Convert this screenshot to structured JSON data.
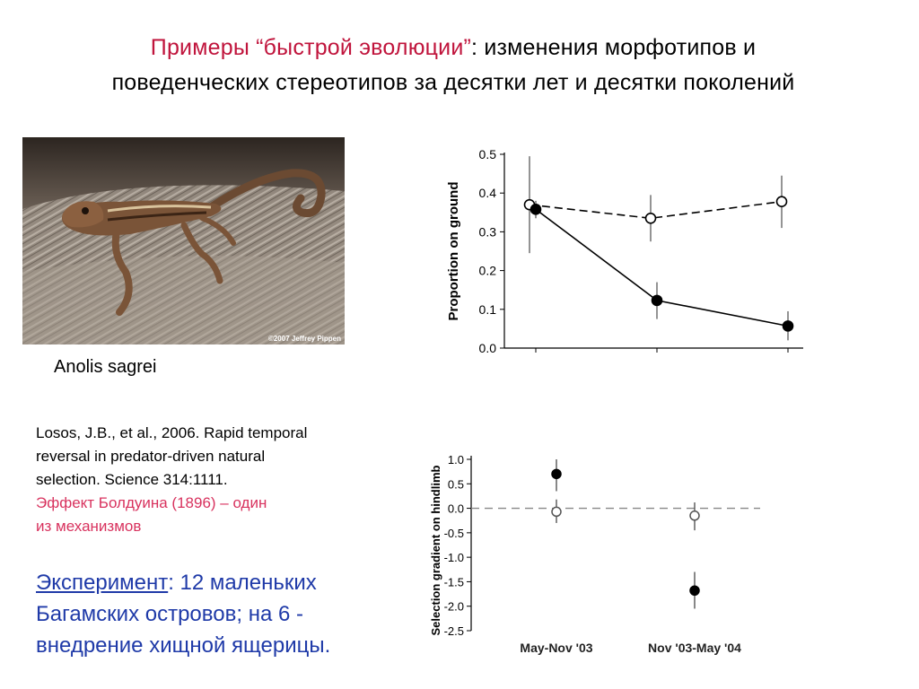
{
  "title": {
    "accent": "Примеры “быстрой эволюции”",
    "rest": ": изменения морфотипов и",
    "line2": "поведенческих стереотипов за десятки лет и десятки поколений"
  },
  "photo": {
    "credit": "©2007 Jeffrey Pippen",
    "caption": "Anolis sagrei"
  },
  "reference": {
    "line1": "Losos, J.B., et al., 2006. Rapid temporal",
    "line2": "reversal in predator-driven natural",
    "line3": "selection. Science 314:1111.",
    "pink1": "Эффект Болдуина (1896) – один",
    "pink2": "из механизмов"
  },
  "experiment": {
    "label": "Эксперимент",
    "line1_rest": ": 12 маленьких",
    "line2": "Багамских островов; на 6 -",
    "line3": "внедрение хищной ящерицы."
  },
  "chart_data": [
    {
      "type": "line",
      "ylabel": "Proportion on ground",
      "ylim": [
        0.0,
        0.5
      ],
      "yticks": [
        "0.0",
        "0.1",
        "0.2",
        "0.3",
        "0.4",
        "0.5"
      ],
      "x_positions": 3,
      "series": [
        {
          "style": "open-circles-dashed",
          "values": [
            0.37,
            0.335,
            0.378
          ],
          "err_low": [
            0.245,
            0.275,
            0.31
          ],
          "err_high": [
            0.495,
            0.395,
            0.445
          ]
        },
        {
          "style": "filled-circles-solid",
          "values": [
            0.358,
            0.123,
            0.057
          ],
          "err_low": [
            0.335,
            0.075,
            0.02
          ],
          "err_high": [
            0.38,
            0.17,
            0.095
          ]
        }
      ]
    },
    {
      "type": "scatter",
      "ylabel": "Selection gradient on hindlimb",
      "ylim": [
        -2.5,
        1.0
      ],
      "yticks": [
        "1.0",
        "0.5",
        "0.0",
        "-0.5",
        "-1.0",
        "-1.5",
        "-2.0",
        "-2.5"
      ],
      "categories": [
        "May-Nov '03",
        "Nov '03-May '04"
      ],
      "reference_line": 0.0,
      "series": [
        {
          "style": "filled-circles",
          "values": [
            0.7,
            -1.68
          ],
          "err_low": [
            0.35,
            -2.05
          ],
          "err_high": [
            1.0,
            -1.3
          ]
        },
        {
          "style": "open-circles",
          "values": [
            -0.07,
            -0.15
          ],
          "err_low": [
            -0.3,
            -0.45
          ],
          "err_high": [
            0.18,
            0.12
          ]
        }
      ]
    }
  ]
}
